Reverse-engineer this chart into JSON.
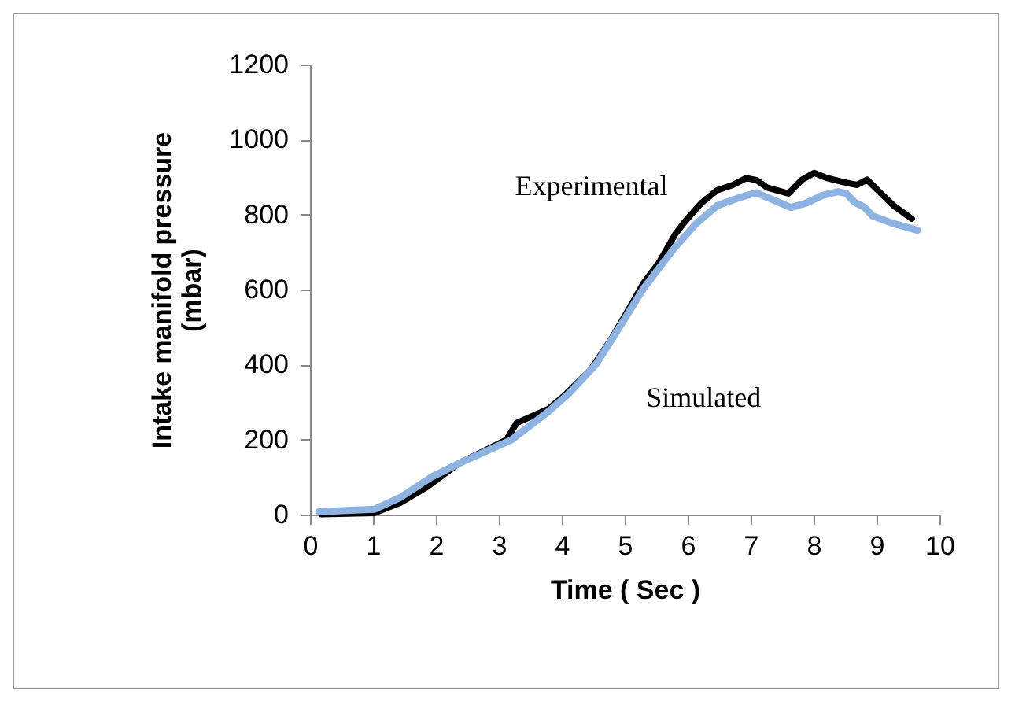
{
  "chart_data": {
    "type": "line",
    "xlabel": "Time ( Sec )",
    "ylabel": "Intake manifold pressure\n(mbar)",
    "xlim": [
      0,
      10
    ],
    "xticks": [
      0,
      1,
      2,
      3,
      4,
      5,
      6,
      7,
      8,
      9,
      10
    ],
    "ylim": [
      0,
      1200
    ],
    "yticks": [
      0,
      200,
      400,
      600,
      800,
      1000,
      1200
    ],
    "grid": false,
    "legend": false,
    "marker": "none",
    "line_style": "solid",
    "series": [
      {
        "name": "Experimental",
        "color": "#000000",
        "x": [
          0.18,
          1.02,
          1.44,
          1.86,
          2.36,
          3.12,
          3.28,
          3.79,
          4.04,
          4.46,
          4.79,
          5.13,
          5.29,
          5.54,
          5.8,
          5.96,
          6.22,
          6.47,
          6.72,
          6.93,
          7.09,
          7.26,
          7.6,
          7.81,
          8.01,
          8.22,
          8.48,
          8.69,
          8.85,
          9.06,
          9.27,
          9.56
        ],
        "values": [
          1,
          4,
          32,
          74,
          136,
          199,
          244,
          282,
          317,
          386,
          469,
          567,
          615,
          671,
          747,
          782,
          831,
          865,
          879,
          897,
          892,
          872,
          856,
          892,
          911,
          897,
          886,
          879,
          893,
          858,
          824,
          789
        ]
      },
      {
        "name": "Simulated",
        "color": "#8db3e2",
        "x": [
          0.14,
          1.02,
          1.44,
          1.94,
          2.45,
          3.2,
          3.79,
          4.12,
          4.54,
          4.96,
          5.29,
          5.8,
          6.13,
          6.47,
          6.8,
          7.09,
          7.39,
          7.64,
          7.89,
          8.14,
          8.39,
          8.52,
          8.65,
          8.81,
          8.94,
          9.23,
          9.65
        ],
        "values": [
          8,
          14,
          46,
          101,
          143,
          199,
          275,
          324,
          400,
          511,
          601,
          713,
          775,
          824,
          844,
          858,
          837,
          819,
          831,
          851,
          861,
          856,
          833,
          819,
          796,
          778,
          758
        ]
      }
    ]
  }
}
